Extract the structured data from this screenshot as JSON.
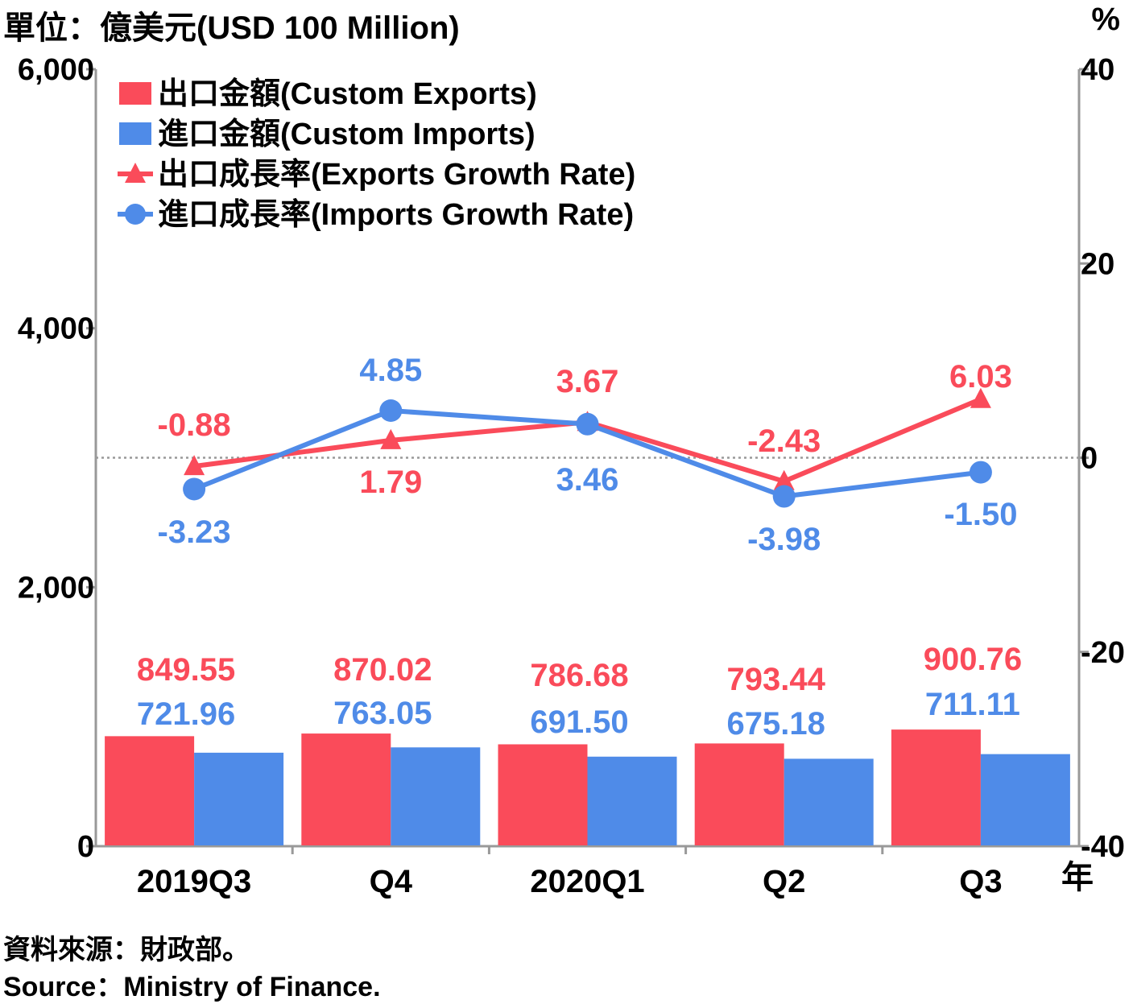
{
  "header": {
    "unit_label": "單位：億美元(USD 100 Million)",
    "right_unit": "%"
  },
  "footer": {
    "source_cn": "資料來源：財政部。",
    "source_en": "Source：Ministry of Finance."
  },
  "colors": {
    "exports": "#fa4b5a",
    "imports": "#4f8be8",
    "axis": "#999999"
  },
  "chart_data": {
    "type": "bar",
    "categories": [
      "2019Q3",
      "Q4",
      "2020Q1",
      "Q2",
      "Q3"
    ],
    "x_unit": "年",
    "left_axis": {
      "ylim": [
        0,
        6000
      ],
      "ticks": [
        "0",
        "2,000",
        "4,000",
        "6,000"
      ],
      "tick_values": [
        0,
        2000,
        4000,
        6000
      ]
    },
    "right_axis": {
      "ylim": [
        -40,
        40
      ],
      "ticks": [
        "-40",
        "-20",
        "0",
        "20",
        "40"
      ],
      "tick_values": [
        -40,
        -20,
        0,
        20,
        40
      ]
    },
    "legend_position": "top-left",
    "series": [
      {
        "name": "出口金額(Custom Exports)",
        "type": "bar",
        "axis": "left",
        "values": [
          849.55,
          870.02,
          786.68,
          793.44,
          900.76
        ],
        "labels": [
          "849.55",
          "870.02",
          "786.68",
          "793.44",
          "900.76"
        ]
      },
      {
        "name": "進口金額(Custom Imports)",
        "type": "bar",
        "axis": "left",
        "values": [
          721.96,
          763.05,
          691.5,
          675.18,
          711.11
        ],
        "labels": [
          "721.96",
          "763.05",
          "691.50",
          "675.18",
          "711.11"
        ]
      },
      {
        "name": "出口成長率(Exports Growth Rate)",
        "type": "line",
        "marker": "triangle",
        "axis": "right",
        "values": [
          -0.88,
          1.79,
          3.67,
          -2.43,
          6.03
        ],
        "labels": [
          "-0.88",
          "1.79",
          "3.67",
          "-2.43",
          "6.03"
        ]
      },
      {
        "name": "進口成長率(Imports Growth Rate)",
        "type": "line",
        "marker": "circle",
        "axis": "right",
        "values": [
          -3.23,
          4.85,
          3.46,
          -3.98,
          -1.5
        ],
        "labels": [
          "-3.23",
          "4.85",
          "3.46",
          "-3.98",
          "-1.50"
        ]
      }
    ]
  }
}
